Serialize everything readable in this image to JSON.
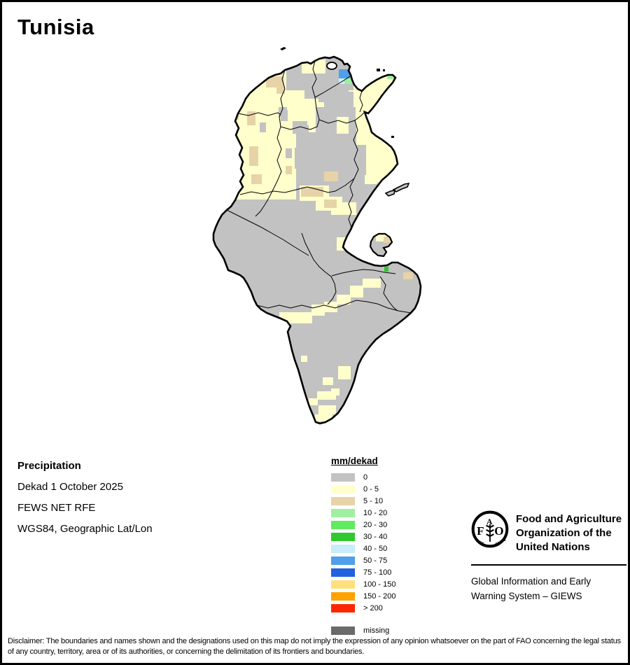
{
  "title": "Tunisia",
  "info": {
    "heading": "Precipitation",
    "lines": [
      "Dekad 1 October 2025",
      "FEWS NET RFE",
      "WGS84, Geographic Lat/Lon"
    ]
  },
  "legend": {
    "title": "mm/dekad",
    "entries": [
      {
        "label": "0",
        "color": "#C2C2C2"
      },
      {
        "label": "0 - 5",
        "color": "#FFFFCC"
      },
      {
        "label": "5 - 10",
        "color": "#E7D3A8"
      },
      {
        "label": "10 - 20",
        "color": "#A1F0A1"
      },
      {
        "label": "20 - 30",
        "color": "#60EB60"
      },
      {
        "label": "30 - 40",
        "color": "#2FC82F"
      },
      {
        "label": "40 - 50",
        "color": "#C8EDF9"
      },
      {
        "label": "50 - 75",
        "color": "#4F9FEA"
      },
      {
        "label": "75 - 100",
        "color": "#2162E0"
      },
      {
        "label": "100 - 150",
        "color": "#FFE07F"
      },
      {
        "label": "150 - 200",
        "color": "#FFA200"
      },
      {
        "label": "> 200",
        "color": "#FF2600"
      }
    ],
    "missing": {
      "label": "missing",
      "color": "#6A6A6A"
    }
  },
  "fao": {
    "logo_letter_f": "F",
    "logo_letter_a": "A",
    "logo_letter_o": "O",
    "logo_motto_left": "FIAT",
    "logo_motto_right": "PANIS",
    "org_lines": [
      "Food and Agriculture",
      "Organization of the",
      "United Nations"
    ],
    "giews_lines": [
      "Global Information and Early",
      "Warning System – GIEWS"
    ]
  },
  "disclaimer": "Disclaimer: The boundaries and names shown and the designations used on this map do not imply the expression of any opinion whatsoever on the part of FAO concerning the legal status of any country, territory, area or of its authorities, or concerning the delimitation of its frontiers and boundaries.",
  "map": {
    "name": "Tunisia dekadal rainfall estimate map",
    "sea_color": "#FFFFFF",
    "border_color": "#000000",
    "colors": {
      "n": "#C2C2C2",
      "y": "#FFFFCC",
      "t": "#E7D3A8",
      "g1": "#A1F0A1",
      "g3": "#2FC82F",
      "c": "#C8EDF9",
      "b": "#4F9FEA",
      "m": "#6A6A6A"
    },
    "cells": [
      [
        "y",
        336,
        88,
        96,
        90
      ],
      [
        "y",
        330,
        148,
        90,
        134
      ],
      [
        "y",
        398,
        138,
        54,
        48
      ],
      [
        "y",
        495,
        96,
        72,
        66
      ],
      [
        "y",
        500,
        158,
        64,
        48
      ],
      [
        "y",
        518,
        198,
        48,
        60
      ],
      [
        "y",
        445,
        143,
        30,
        32
      ],
      [
        "y",
        425,
        262,
        42,
        22
      ],
      [
        "y",
        448,
        278,
        38,
        20
      ],
      [
        "y",
        470,
        286,
        36,
        18
      ],
      [
        "y",
        478,
        336,
        20,
        19
      ],
      [
        "n",
        406,
        76,
        96,
        50
      ],
      [
        "n",
        460,
        128,
        42,
        24
      ],
      [
        "n",
        448,
        150,
        58,
        94
      ],
      [
        "n",
        420,
        176,
        18,
        22
      ],
      [
        "n",
        395,
        150,
        12,
        14
      ],
      [
        "n",
        490,
        204,
        30,
        54
      ],
      [
        "n",
        368,
        172,
        9,
        14
      ],
      [
        "n",
        398,
        154,
        10,
        16
      ],
      [
        "n",
        415,
        170,
        21,
        18
      ],
      [
        "n",
        405,
        209,
        9,
        14
      ],
      [
        "n",
        418,
        208,
        18,
        30
      ],
      [
        "y",
        428,
        82,
        34,
        20
      ],
      [
        "y",
        478,
        164,
        17,
        24
      ],
      [
        "y",
        505,
        148,
        17,
        26
      ],
      [
        "y",
        518,
        247,
        18,
        13
      ],
      [
        "y",
        540,
        228,
        12,
        14
      ],
      [
        "y",
        362,
        450,
        44,
        18
      ],
      [
        "y",
        396,
        443,
        32,
        16
      ],
      [
        "y",
        423,
        443,
        20,
        16
      ],
      [
        "y",
        442,
        432,
        19,
        16
      ],
      [
        "y",
        460,
        428,
        19,
        15
      ],
      [
        "y",
        478,
        418,
        20,
        14
      ],
      [
        "y",
        497,
        405,
        19,
        17
      ],
      [
        "y",
        515,
        395,
        26,
        13
      ],
      [
        "y",
        480,
        520,
        18,
        19
      ],
      [
        "y",
        458,
        536,
        15,
        11
      ],
      [
        "y",
        427,
        505,
        9,
        9
      ],
      [
        "y",
        450,
        556,
        27,
        12
      ],
      [
        "y",
        438,
        566,
        13,
        10
      ],
      [
        "y",
        452,
        576,
        25,
        13
      ],
      [
        "y",
        447,
        589,
        25,
        10
      ],
      [
        "y",
        470,
        552,
        12,
        10
      ],
      [
        "y",
        534,
        331,
        19,
        11
      ],
      [
        "t",
        377,
        106,
        26,
        16
      ],
      [
        "t",
        392,
        120,
        12,
        11
      ],
      [
        "t",
        350,
        156,
        12,
        20
      ],
      [
        "t",
        328,
        158,
        10,
        10
      ],
      [
        "t",
        353,
        206,
        13,
        28
      ],
      [
        "t",
        356,
        246,
        15,
        14
      ],
      [
        "t",
        405,
        234,
        9,
        12
      ],
      [
        "t",
        427,
        264,
        32,
        14
      ],
      [
        "t",
        460,
        282,
        18,
        12
      ],
      [
        "t",
        460,
        242,
        20,
        14
      ],
      [
        "t",
        545,
        335,
        12,
        9
      ],
      [
        "t",
        573,
        386,
        14,
        10
      ],
      [
        "b",
        481,
        96,
        16,
        13
      ],
      [
        "c",
        481,
        109,
        8,
        8
      ],
      [
        "g1",
        489,
        109,
        10,
        8
      ],
      [
        "g1",
        550,
        101,
        11,
        9
      ],
      [
        "g1",
        526,
        358,
        9,
        8
      ],
      [
        "g3",
        546,
        378,
        6,
        7
      ]
    ]
  }
}
